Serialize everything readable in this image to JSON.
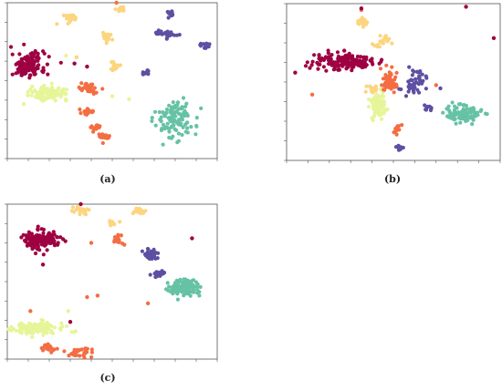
{
  "captions": [
    "(a)",
    "(b)",
    "(c)"
  ],
  "colors": {
    "crimson": "#9e0142",
    "orange": "#f46d43",
    "gold": "#fdd57f",
    "yellowgreen": "#e6f598",
    "teal": "#66c2a5",
    "purple": "#5e4fa2"
  },
  "chart_data": [
    {
      "type": "scatter",
      "title": "",
      "xlabel": "",
      "ylabel": "",
      "xlim": [
        0,
        100
      ],
      "ylim": [
        0,
        100
      ],
      "grid": false,
      "clusters": [
        {
          "color": "crimson",
          "shape": "blob",
          "x": 10,
          "y": 60,
          "rx": 8,
          "ry": 8,
          "n": 140
        },
        {
          "color": "yellowgreen",
          "shape": "blob",
          "x": 20,
          "y": 42,
          "rx": 9,
          "ry": 4,
          "n": 110
        },
        {
          "color": "gold",
          "shape": "blob",
          "x": 30,
          "y": 90,
          "rx": 3,
          "ry": 3,
          "n": 22
        },
        {
          "color": "gold",
          "shape": "blob",
          "x": 48,
          "y": 78,
          "rx": 2.5,
          "ry": 3,
          "n": 18
        },
        {
          "color": "gold",
          "shape": "blob",
          "x": 54,
          "y": 96,
          "rx": 2.5,
          "ry": 2,
          "n": 14
        },
        {
          "color": "gold",
          "shape": "blob",
          "x": 51,
          "y": 59,
          "rx": 3,
          "ry": 3,
          "n": 16
        },
        {
          "color": "orange",
          "shape": "blob",
          "x": 39,
          "y": 45,
          "rx": 4,
          "ry": 3,
          "n": 40
        },
        {
          "color": "orange",
          "shape": "blob",
          "x": 38,
          "y": 30,
          "rx": 4,
          "ry": 2,
          "n": 25
        },
        {
          "color": "orange",
          "shape": "blob",
          "x": 46,
          "y": 14,
          "rx": 4,
          "ry": 2,
          "n": 25
        },
        {
          "color": "orange",
          "shape": "blob",
          "x": 42,
          "y": 20,
          "rx": 2,
          "ry": 3,
          "n": 15
        },
        {
          "color": "purple",
          "shape": "blob",
          "x": 76,
          "y": 80,
          "rx": 6,
          "ry": 2,
          "n": 30
        },
        {
          "color": "purple",
          "shape": "blob",
          "x": 78,
          "y": 93,
          "rx": 2.5,
          "ry": 2.5,
          "n": 14
        },
        {
          "color": "purple",
          "shape": "blob",
          "x": 94,
          "y": 72,
          "rx": 2.5,
          "ry": 2.5,
          "n": 14
        },
        {
          "color": "purple",
          "shape": "blob",
          "x": 66,
          "y": 55,
          "rx": 2,
          "ry": 2.5,
          "n": 12
        },
        {
          "color": "teal",
          "shape": "blob",
          "x": 80,
          "y": 26,
          "rx": 9,
          "ry": 13,
          "n": 120
        }
      ],
      "points": [
        {
          "color": "crimson",
          "x": 32,
          "y": 61
        },
        {
          "color": "crimson",
          "x": 38,
          "y": 59
        },
        {
          "color": "yellowgreen",
          "x": 28,
          "y": 66
        },
        {
          "color": "yellowgreen",
          "x": 58,
          "y": 38
        },
        {
          "color": "yellowgreen",
          "x": 50,
          "y": 40
        },
        {
          "color": "orange",
          "x": 52,
          "y": 100
        },
        {
          "color": "gold",
          "x": 33,
          "y": 65
        }
      ]
    },
    {
      "type": "scatter",
      "title": "",
      "xlabel": "",
      "ylabel": "",
      "xlim": [
        0,
        100
      ],
      "ylim": [
        0,
        100
      ],
      "grid": false,
      "clusters": [
        {
          "color": "crimson",
          "shape": "blob",
          "x": 26,
          "y": 63,
          "rx": 14,
          "ry": 5,
          "n": 150
        },
        {
          "color": "gold",
          "shape": "blob",
          "x": 35,
          "y": 88,
          "rx": 2.5,
          "ry": 3,
          "n": 18
        },
        {
          "color": "gold",
          "shape": "blob",
          "x": 47,
          "y": 78,
          "rx": 3,
          "ry": 2.5,
          "n": 16
        },
        {
          "color": "gold",
          "shape": "blob",
          "x": 42,
          "y": 74,
          "rx": 2,
          "ry": 2,
          "n": 10
        },
        {
          "color": "gold",
          "shape": "blob",
          "x": 40,
          "y": 45,
          "rx": 3,
          "ry": 3,
          "n": 18
        },
        {
          "color": "yellowgreen",
          "shape": "blob",
          "x": 43,
          "y": 35,
          "rx": 4,
          "ry": 8,
          "n": 80
        },
        {
          "color": "orange",
          "shape": "blob",
          "x": 48,
          "y": 50,
          "rx": 4,
          "ry": 7,
          "n": 60
        },
        {
          "color": "orange",
          "shape": "blob",
          "x": 52,
          "y": 20,
          "rx": 2.5,
          "ry": 2.5,
          "n": 14
        },
        {
          "color": "purple",
          "shape": "blob",
          "x": 60,
          "y": 50,
          "rx": 5,
          "ry": 8,
          "n": 50
        },
        {
          "color": "purple",
          "shape": "blob",
          "x": 66,
          "y": 33,
          "rx": 2,
          "ry": 2,
          "n": 10
        },
        {
          "color": "purple",
          "shape": "blob",
          "x": 53,
          "y": 8,
          "rx": 2,
          "ry": 2,
          "n": 10
        },
        {
          "color": "teal",
          "shape": "blob",
          "x": 83,
          "y": 30,
          "rx": 8,
          "ry": 6,
          "n": 100
        }
      ],
      "points": [
        {
          "color": "crimson",
          "x": 4,
          "y": 56
        },
        {
          "color": "crimson",
          "x": 84,
          "y": 98
        },
        {
          "color": "crimson",
          "x": 97,
          "y": 78
        },
        {
          "color": "crimson",
          "x": 27,
          "y": 70
        },
        {
          "color": "orange",
          "x": 12,
          "y": 42
        },
        {
          "color": "orange",
          "x": 35,
          "y": 96
        },
        {
          "color": "crimson",
          "x": 35,
          "y": 97
        },
        {
          "color": "purple",
          "x": 72,
          "y": 46
        },
        {
          "color": "orange",
          "x": 70,
          "y": 48
        }
      ]
    },
    {
      "type": "scatter",
      "title": "",
      "xlabel": "",
      "ylabel": "",
      "xlim": [
        0,
        100
      ],
      "ylim": [
        0,
        100
      ],
      "grid": false,
      "clusters": [
        {
          "color": "crimson",
          "shape": "blob",
          "x": 16,
          "y": 77,
          "rx": 8,
          "ry": 6,
          "n": 140
        },
        {
          "color": "gold",
          "shape": "blob",
          "x": 35,
          "y": 96,
          "rx": 4,
          "ry": 2.5,
          "n": 22
        },
        {
          "color": "gold",
          "shape": "blob",
          "x": 62,
          "y": 96,
          "rx": 4,
          "ry": 2,
          "n": 18
        },
        {
          "color": "gold",
          "shape": "blob",
          "x": 50,
          "y": 88,
          "rx": 3,
          "ry": 2,
          "n": 14
        },
        {
          "color": "orange",
          "shape": "blob",
          "x": 53,
          "y": 77,
          "rx": 3,
          "ry": 3,
          "n": 18
        },
        {
          "color": "purple",
          "shape": "blob",
          "x": 68,
          "y": 67,
          "rx": 4,
          "ry": 4,
          "n": 35
        },
        {
          "color": "purple",
          "shape": "blob",
          "x": 72,
          "y": 55,
          "rx": 3,
          "ry": 2,
          "n": 18
        },
        {
          "color": "teal",
          "shape": "blob",
          "x": 85,
          "y": 46,
          "rx": 9,
          "ry": 5,
          "n": 110
        },
        {
          "color": "yellowgreen",
          "shape": "blob",
          "x": 15,
          "y": 20,
          "rx": 12,
          "ry": 4,
          "n": 110
        },
        {
          "color": "orange",
          "shape": "blob",
          "x": 20,
          "y": 7,
          "rx": 4,
          "ry": 2.5,
          "n": 22
        },
        {
          "color": "orange",
          "shape": "blob",
          "x": 35,
          "y": 4,
          "rx": 6,
          "ry": 3,
          "n": 30
        }
      ],
      "points": [
        {
          "color": "crimson",
          "x": 17,
          "y": 61
        },
        {
          "color": "crimson",
          "x": 88,
          "y": 78
        },
        {
          "color": "crimson",
          "x": 35,
          "y": 100
        },
        {
          "color": "orange",
          "x": 40,
          "y": 75
        },
        {
          "color": "orange",
          "x": 43,
          "y": 41
        },
        {
          "color": "orange",
          "x": 38,
          "y": 40
        },
        {
          "color": "orange",
          "x": 67,
          "y": 36
        },
        {
          "color": "orange",
          "x": 11,
          "y": 31
        },
        {
          "color": "yellowgreen",
          "x": 29,
          "y": 31
        },
        {
          "color": "crimson",
          "x": 30,
          "y": 24
        }
      ]
    }
  ]
}
